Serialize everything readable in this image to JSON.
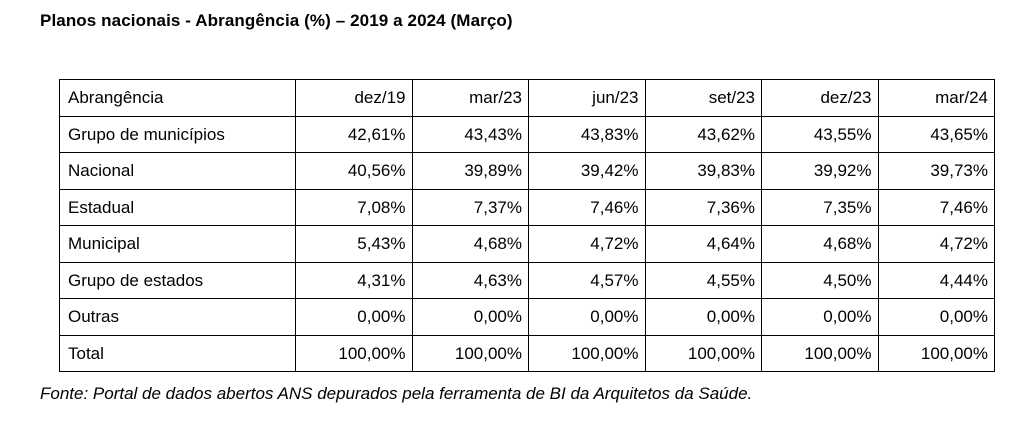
{
  "title": "Planos nacionais - Abrangência (%) – 2019 a 2024 (Março)",
  "source": "Fonte: Portal de dados abertos ANS depurados pela ferramenta de BI da Arquitetos da Saúde.",
  "chart_data": {
    "type": "table",
    "title": "Planos nacionais - Abrangência (%) – 2019 a 2024 (Março)",
    "columns": [
      "Abrangência",
      "dez/19",
      "mar/23",
      "jun/23",
      "set/23",
      "dez/23",
      "mar/24"
    ],
    "rows": [
      {
        "label": "Grupo de municípios",
        "cells": [
          "42,61%",
          "43,43%",
          "43,83%",
          "43,62%",
          "43,55%",
          "43,65%"
        ]
      },
      {
        "label": "Nacional",
        "cells": [
          "40,56%",
          "39,89%",
          "39,42%",
          "39,83%",
          "39,92%",
          "39,73%"
        ]
      },
      {
        "label": "Estadual",
        "cells": [
          "7,08%",
          "7,37%",
          "7,46%",
          "7,36%",
          "7,35%",
          "7,46%"
        ]
      },
      {
        "label": "Municipal",
        "cells": [
          "5,43%",
          "4,68%",
          "4,72%",
          "4,64%",
          "4,68%",
          "4,72%"
        ]
      },
      {
        "label": "Grupo de estados",
        "cells": [
          "4,31%",
          "4,63%",
          "4,57%",
          "4,55%",
          "4,50%",
          "4,44%"
        ]
      },
      {
        "label": "Outras",
        "cells": [
          "0,00%",
          "0,00%",
          "0,00%",
          "0,00%",
          "0,00%",
          "0,00%"
        ]
      },
      {
        "label": "Total",
        "cells": [
          "100,00%",
          "100,00%",
          "100,00%",
          "100,00%",
          "100,00%",
          "100,00%"
        ]
      }
    ],
    "series": [
      {
        "name": "Grupo de municípios",
        "values": [
          42.61,
          43.43,
          43.83,
          43.62,
          43.55,
          43.65
        ]
      },
      {
        "name": "Nacional",
        "values": [
          40.56,
          39.89,
          39.42,
          39.83,
          39.92,
          39.73
        ]
      },
      {
        "name": "Estadual",
        "values": [
          7.08,
          7.37,
          7.46,
          7.36,
          7.35,
          7.46
        ]
      },
      {
        "name": "Municipal",
        "values": [
          5.43,
          4.68,
          4.72,
          4.64,
          4.68,
          4.72
        ]
      },
      {
        "name": "Grupo de estados",
        "values": [
          4.31,
          4.63,
          4.57,
          4.55,
          4.5,
          4.44
        ]
      },
      {
        "name": "Outras",
        "values": [
          0.0,
          0.0,
          0.0,
          0.0,
          0.0,
          0.0
        ]
      },
      {
        "name": "Total",
        "values": [
          100.0,
          100.0,
          100.0,
          100.0,
          100.0,
          100.0
        ]
      }
    ]
  }
}
